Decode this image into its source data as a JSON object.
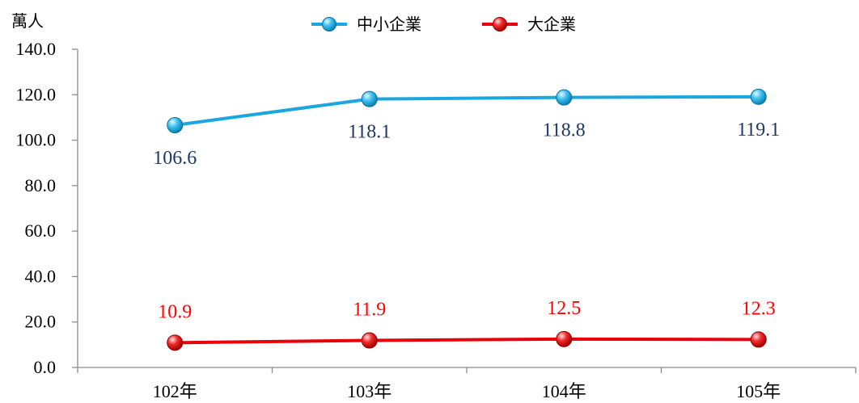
{
  "chart_data": {
    "type": "line",
    "unit_label": "萬人",
    "categories": [
      "102年",
      "103年",
      "104年",
      "105年"
    ],
    "ylim": [
      0,
      140
    ],
    "yticks": [
      "0.0",
      "20.0",
      "40.0",
      "60.0",
      "80.0",
      "100.0",
      "120.0",
      "140.0"
    ],
    "grid": false,
    "legend_position": "top-center",
    "series": [
      {
        "name": "中小企業",
        "values": [
          106.6,
          118.1,
          118.8,
          119.1
        ],
        "labels": [
          "106.6",
          "118.1",
          "118.8",
          "119.1"
        ],
        "color": "#1AA7DF",
        "label_color": "#1F3864"
      },
      {
        "name": "大企業",
        "values": [
          10.9,
          11.9,
          12.5,
          12.3
        ],
        "labels": [
          "10.9",
          "11.9",
          "12.5",
          "12.3"
        ],
        "color": "#E8000B",
        "label_color": "#FF0000"
      }
    ]
  }
}
